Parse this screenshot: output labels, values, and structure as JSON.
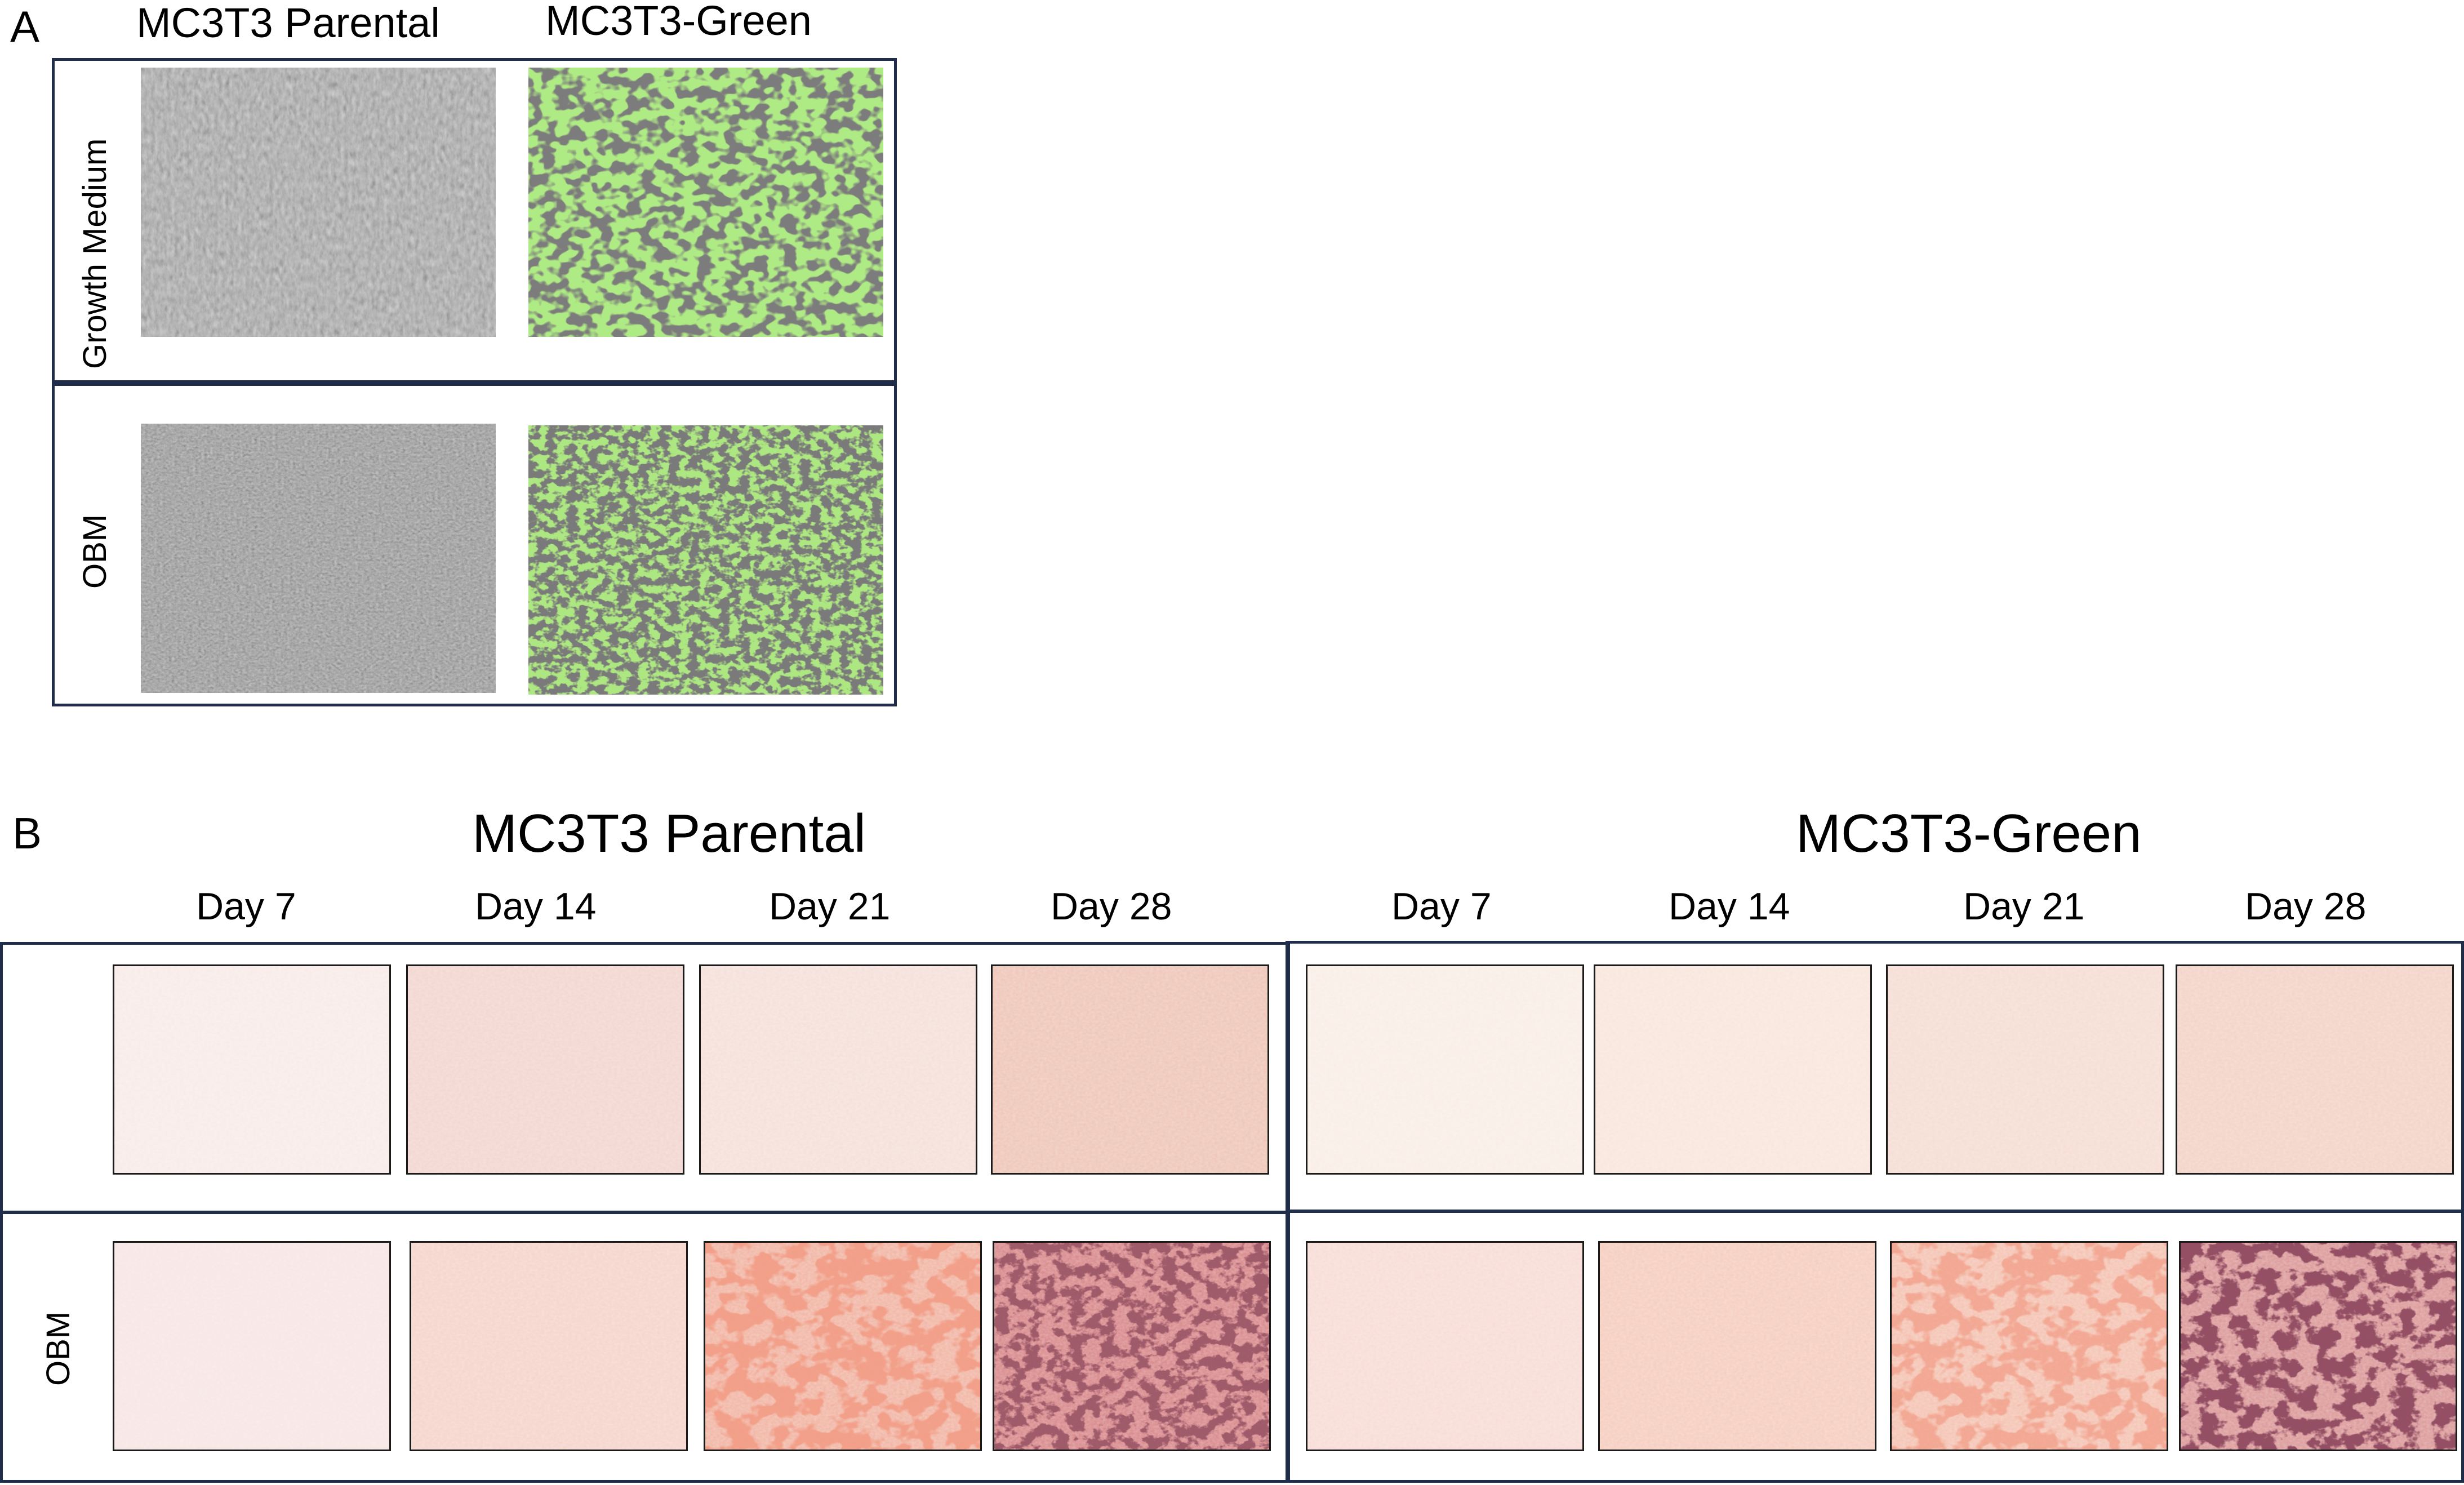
{
  "panel_a": {
    "letter": "A",
    "columns": [
      "MC3T3 Parental",
      "MC3T3-Green"
    ],
    "rows": [
      "Growth Medium",
      "OBM"
    ],
    "images": [
      {
        "name": "parental-growth-medium",
        "kind": "brightfield"
      },
      {
        "name": "green-growth-medium",
        "kind": "fluorescent-overlay",
        "color": "#6fd33a"
      },
      {
        "name": "parental-obm",
        "kind": "brightfield"
      },
      {
        "name": "green-obm",
        "kind": "fluorescent-overlay",
        "color": "#6fd33a"
      }
    ]
  },
  "panel_b": {
    "letter": "B",
    "groups": [
      {
        "title": "MC3T3 Parental",
        "days": [
          "Day 7",
          "Day 14",
          "Day 21",
          "Day 28"
        ]
      },
      {
        "title": "MC3T3-Green",
        "days": [
          "Day 7",
          "Day 14",
          "Day 21",
          "Day 28"
        ]
      }
    ],
    "rows": [
      "",
      "OBM"
    ],
    "colors": {
      "frame": "#1f2d4a",
      "stain_light": "#f7e4df",
      "stain_dark": "#5a1a24",
      "stain_red": "#e5533a"
    }
  }
}
